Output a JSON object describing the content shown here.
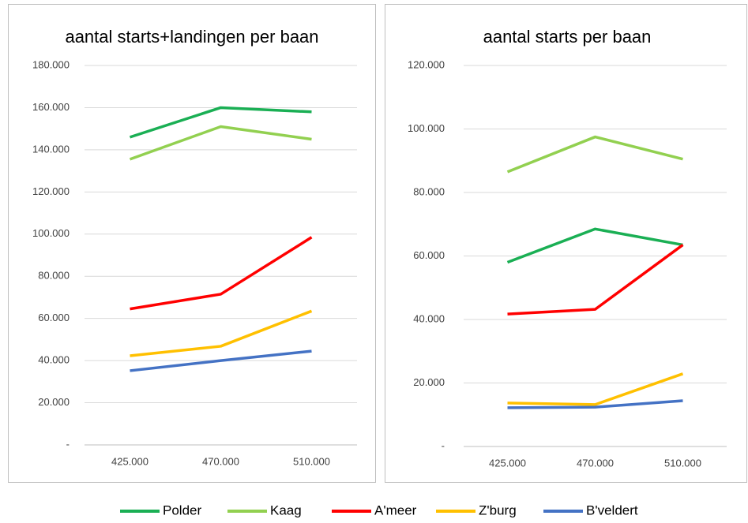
{
  "chart_data": [
    {
      "type": "line",
      "title": "aantal starts+landingen per baan",
      "categories": [
        "425.000",
        "470.000",
        "510.000"
      ],
      "ylim": [
        0,
        180000
      ],
      "yticks": [
        {
          "value": 0,
          "label": "-"
        },
        {
          "value": 20000,
          "label": "20.000"
        },
        {
          "value": 40000,
          "label": "40.000"
        },
        {
          "value": 60000,
          "label": "60.000"
        },
        {
          "value": 80000,
          "label": "80.000"
        },
        {
          "value": 100000,
          "label": "100.000"
        },
        {
          "value": 120000,
          "label": "120.000"
        },
        {
          "value": 140000,
          "label": "140.000"
        },
        {
          "value": 160000,
          "label": "160.000"
        },
        {
          "value": 180000,
          "label": "180.000"
        }
      ],
      "grid": true,
      "series": [
        {
          "name": "Polder",
          "color": "#1aaf54",
          "values": [
            146000,
            160000,
            158000
          ]
        },
        {
          "name": "Kaag",
          "color": "#92d050",
          "values": [
            135500,
            151000,
            145000
          ]
        },
        {
          "name": "A'meer",
          "color": "#ff0000",
          "values": [
            64500,
            71500,
            98500
          ]
        },
        {
          "name": "Z'burg",
          "color": "#ffc000",
          "values": [
            42300,
            46800,
            63500
          ]
        },
        {
          "name": "B'veldert",
          "color": "#4472c4",
          "values": [
            35200,
            40000,
            44500
          ]
        }
      ]
    },
    {
      "type": "line",
      "title": "aantal starts per baan",
      "categories": [
        "425.000",
        "470.000",
        "510.000"
      ],
      "ylim": [
        0,
        120000
      ],
      "yticks": [
        {
          "value": 0,
          "label": "-"
        },
        {
          "value": 20000,
          "label": "20.000"
        },
        {
          "value": 40000,
          "label": "40.000"
        },
        {
          "value": 60000,
          "label": "60.000"
        },
        {
          "value": 80000,
          "label": "80.000"
        },
        {
          "value": 100000,
          "label": "100.000"
        },
        {
          "value": 120000,
          "label": "120.000"
        }
      ],
      "grid": true,
      "series": [
        {
          "name": "Polder",
          "color": "#1aaf54",
          "values": [
            58000,
            68500,
            63500
          ]
        },
        {
          "name": "Kaag",
          "color": "#92d050",
          "values": [
            86500,
            97500,
            90500
          ]
        },
        {
          "name": "A'meer",
          "color": "#ff0000",
          "values": [
            41700,
            43200,
            63500
          ]
        },
        {
          "name": "Z'burg",
          "color": "#ffc000",
          "values": [
            13700,
            13200,
            22900
          ]
        },
        {
          "name": "B'veldert",
          "color": "#4472c4",
          "values": [
            12200,
            12400,
            14400
          ]
        }
      ]
    }
  ]
}
